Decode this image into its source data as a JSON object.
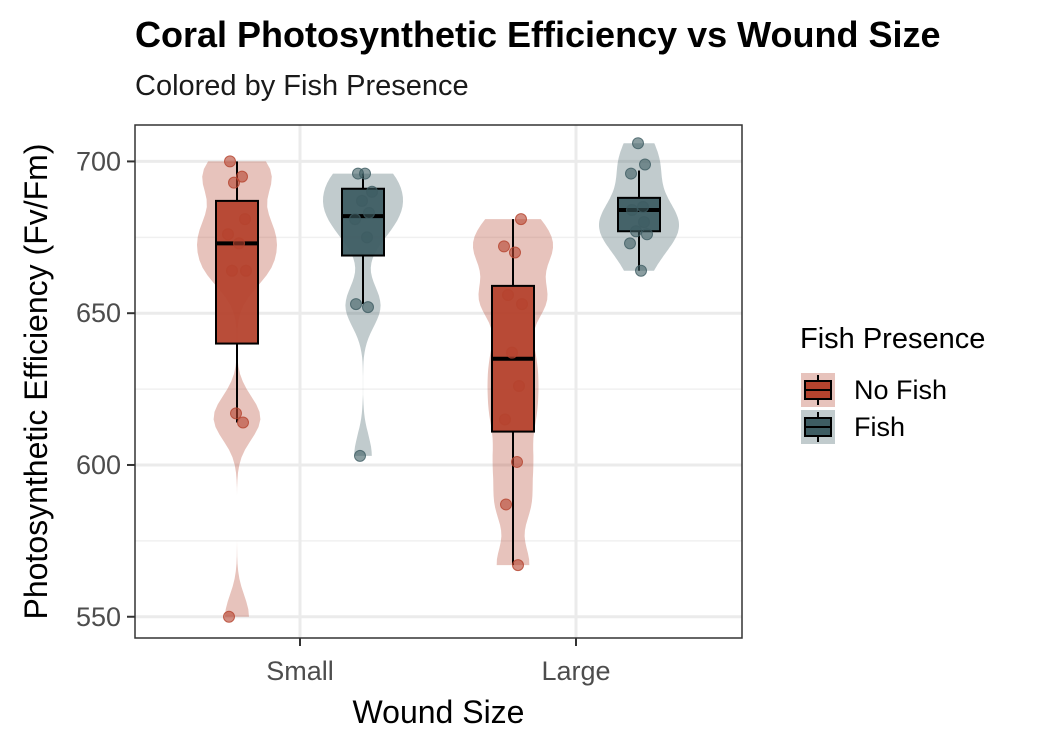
{
  "chart_data": {
    "type": "violin",
    "title": "Coral Photosynthetic Efficiency vs Wound Size",
    "subtitle": "Colored by Fish Presence",
    "xlabel": "Wound Size",
    "ylabel": "Photosynthetic Efficiency (Fv/Fm)",
    "categories": [
      "Small",
      "Large"
    ],
    "ylim": [
      543,
      712
    ],
    "yticks": [
      550,
      600,
      650,
      700
    ],
    "grid": true,
    "legend": {
      "title": "Fish Presence",
      "position": "right"
    },
    "series": [
      {
        "name": "No Fish",
        "color": "#B5432E",
        "groups": [
          {
            "category": "Small",
            "box": {
              "q1": 640,
              "median": 673,
              "q3": 687,
              "whisker_low": 614,
              "whisker_high": 700
            },
            "points": [
              700,
              695,
              693,
              681,
              676,
              673,
              664,
              664,
              617,
              614,
              550
            ]
          },
          {
            "category": "Large",
            "box": {
              "q1": 611,
              "median": 635,
              "q3": 659,
              "whisker_low": 567,
              "whisker_high": 681
            },
            "points": [
              681,
              672,
              670,
              656,
              653,
              637,
              626,
              615,
              601,
              587,
              567
            ]
          }
        ]
      },
      {
        "name": "Fish",
        "color": "#3E5D63",
        "groups": [
          {
            "category": "Small",
            "box": {
              "q1": 669,
              "median": 682,
              "q3": 691,
              "whisker_low": 653,
              "whisker_high": 696
            },
            "points": [
              696,
              696,
              690,
              687,
              683,
              681,
              675,
              653,
              652,
              603
            ]
          },
          {
            "category": "Large",
            "box": {
              "q1": 677,
              "median": 684,
              "q3": 688,
              "whisker_low": 664,
              "whisker_high": 697
            },
            "points": [
              706,
              699,
              696,
              685,
              684,
              680,
              677,
              676,
              673,
              664
            ]
          }
        ]
      }
    ]
  }
}
